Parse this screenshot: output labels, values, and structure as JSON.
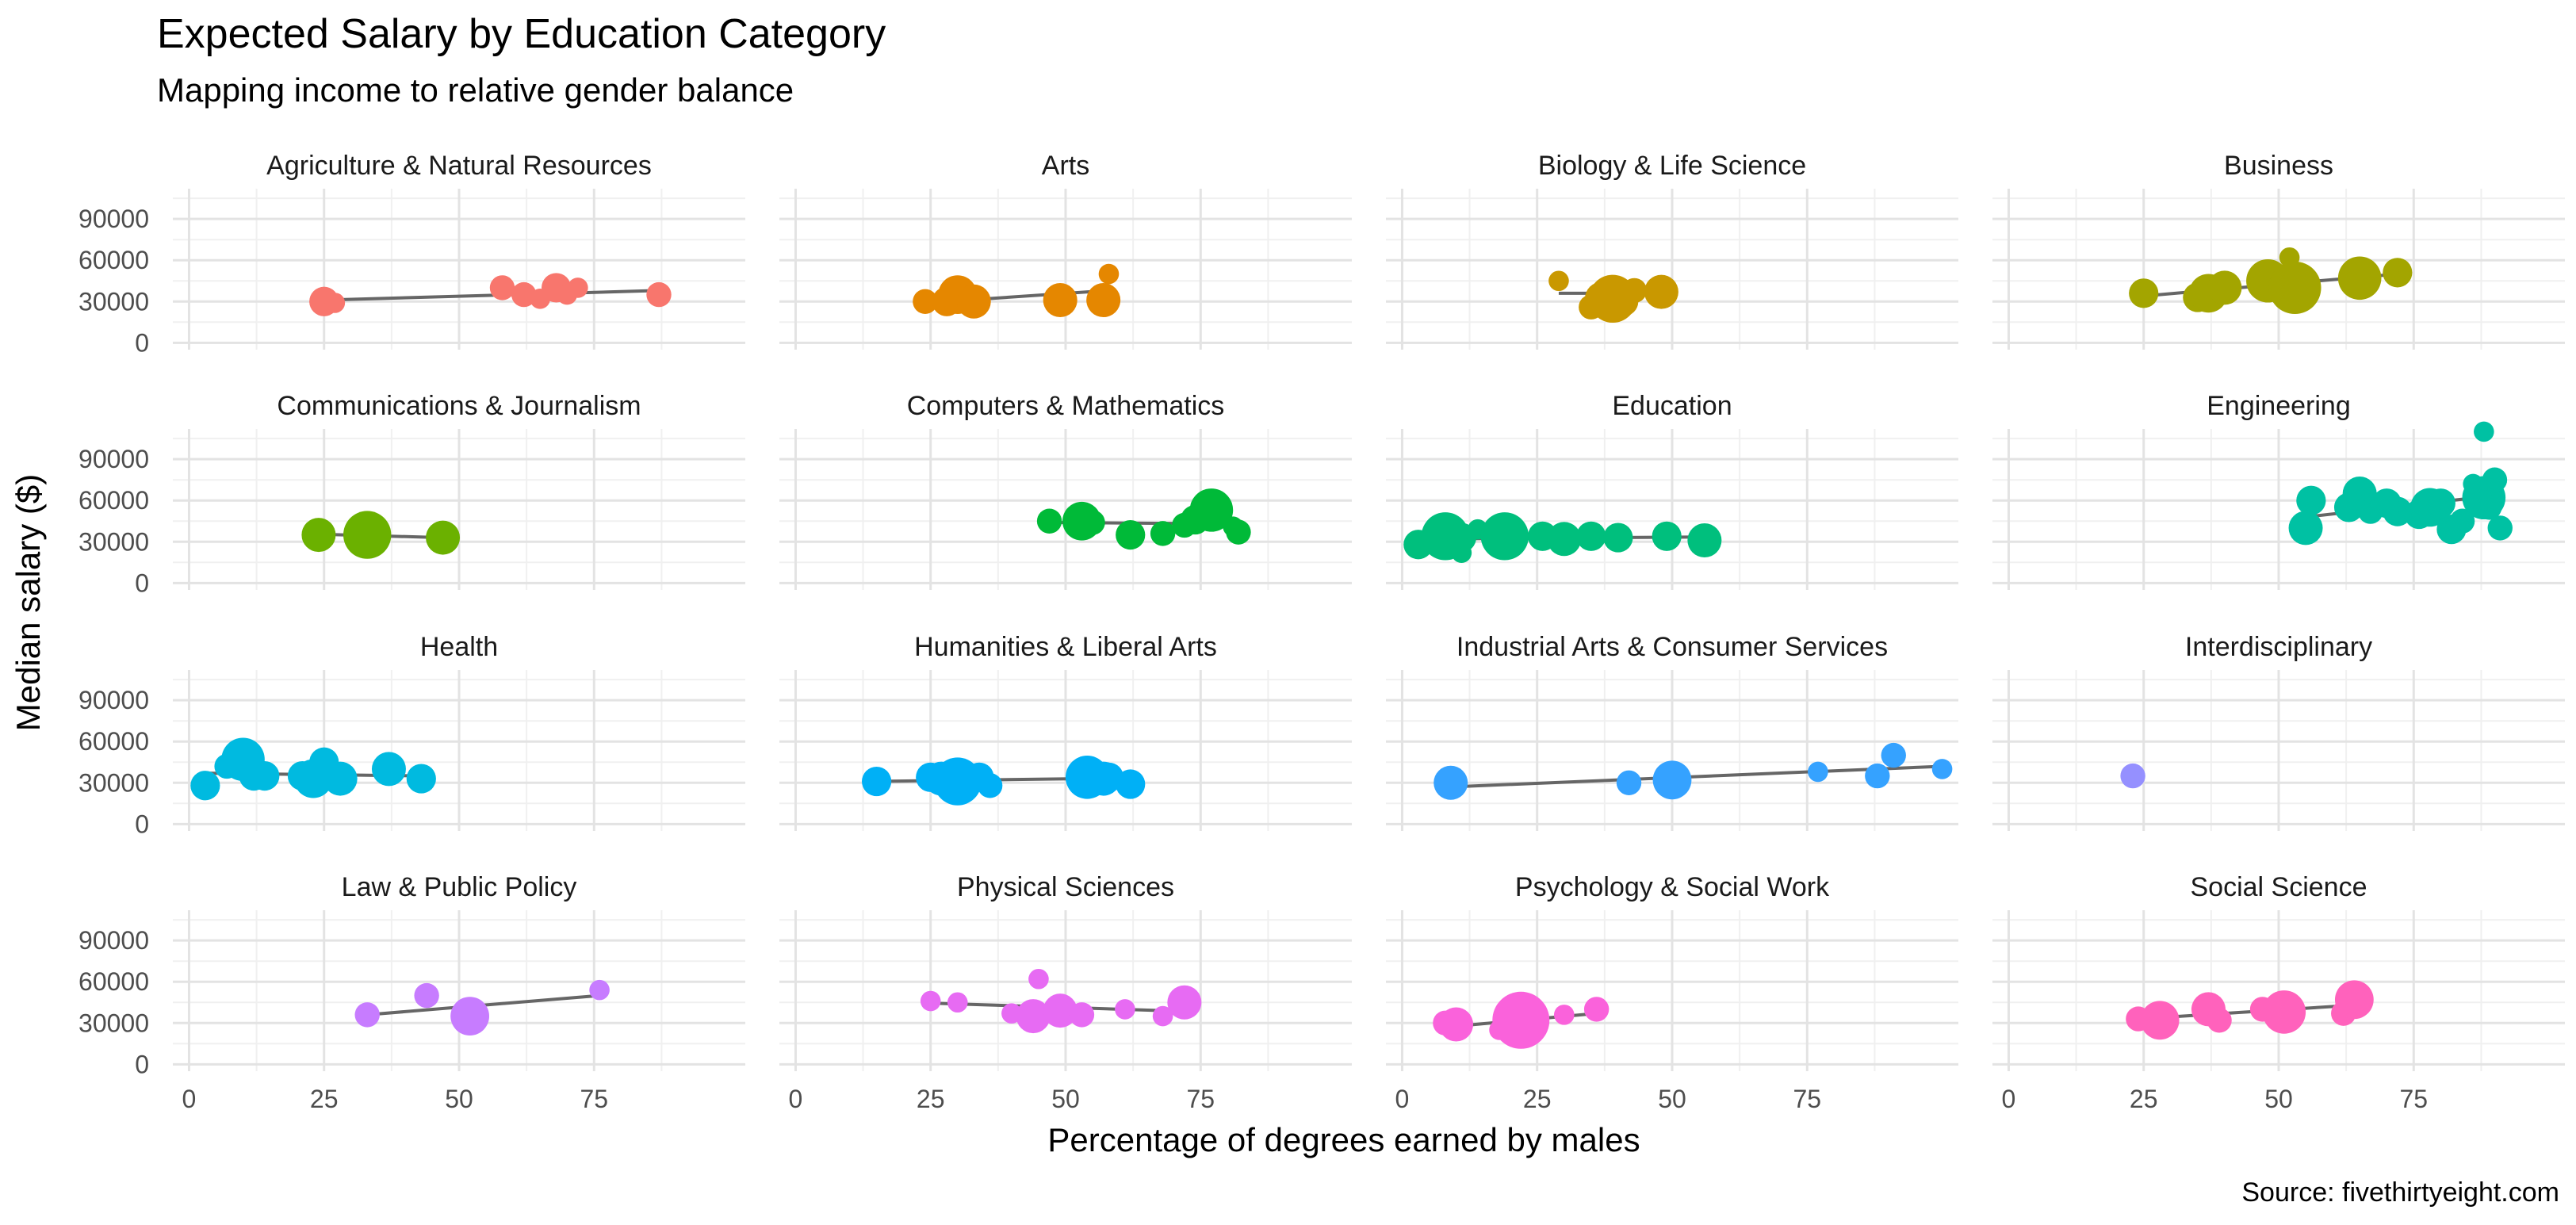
{
  "title": "Expected Salary by Education Category",
  "subtitle": "Mapping income to relative gender balance",
  "caption": "Source: fivethirtyeight.com",
  "chart_data": {
    "type": "scatter",
    "title": "Expected Salary by Education Category",
    "subtitle": "Mapping income to relative gender balance",
    "xlabel": "Percentage of degrees earned by males",
    "ylabel": "Median salary ($)",
    "xlim": [
      -3,
      103
    ],
    "ylim": [
      -5000,
      112000
    ],
    "x_ticks": [
      0,
      25,
      50,
      75
    ],
    "y_ticks": [
      0,
      30000,
      60000,
      90000
    ],
    "grid": true,
    "legend": "none",
    "trend": "linear fit per panel",
    "panels": [
      {
        "name": "Agriculture & Natural Resources",
        "color": "#F8766D",
        "points": [
          [
            25,
            30000,
            2
          ],
          [
            27,
            29000,
            1
          ],
          [
            58,
            40000,
            1.5
          ],
          [
            62,
            35000,
            1.5
          ],
          [
            65,
            32000,
            1
          ],
          [
            68,
            40000,
            2
          ],
          [
            70,
            35000,
            1
          ],
          [
            72,
            40000,
            1
          ],
          [
            87,
            35000,
            1.5
          ]
        ],
        "fit": [
          [
            25,
            31000
          ],
          [
            87,
            38000
          ]
        ]
      },
      {
        "name": "Arts",
        "color": "#E58700",
        "points": [
          [
            24,
            30000,
            1.5
          ],
          [
            28,
            30000,
            2
          ],
          [
            30,
            35000,
            3
          ],
          [
            33,
            30000,
            2.5
          ],
          [
            49,
            31000,
            2.5
          ],
          [
            57,
            31000,
            2.5
          ],
          [
            58,
            50000,
            1
          ]
        ],
        "fit": [
          [
            24,
            29000
          ],
          [
            58,
            38000
          ]
        ]
      },
      {
        "name": "Biology & Life Science",
        "color": "#C99800",
        "points": [
          [
            29,
            45000,
            1
          ],
          [
            35,
            26000,
            1.5
          ],
          [
            37,
            32000,
            2.5
          ],
          [
            39,
            32000,
            4
          ],
          [
            41,
            30000,
            2
          ],
          [
            43,
            38000,
            1.5
          ],
          [
            48,
            37000,
            2.5
          ]
        ],
        "fit": [
          [
            29,
            36000
          ],
          [
            48,
            36000
          ]
        ]
      },
      {
        "name": "Business",
        "color": "#A3A500",
        "points": [
          [
            25,
            36000,
            2
          ],
          [
            35,
            33000,
            2
          ],
          [
            37,
            36000,
            3
          ],
          [
            40,
            40000,
            2.5
          ],
          [
            48,
            45000,
            3.5
          ],
          [
            52,
            62000,
            1
          ],
          [
            53,
            40000,
            4.5
          ],
          [
            65,
            47000,
            3.5
          ],
          [
            72,
            51000,
            2
          ]
        ],
        "fit": [
          [
            25,
            34000
          ],
          [
            72,
            50000
          ]
        ]
      },
      {
        "name": "Communications & Journalism",
        "color": "#6BB100",
        "points": [
          [
            24,
            35000,
            2.5
          ],
          [
            33,
            35000,
            4
          ],
          [
            47,
            33000,
            2.5
          ]
        ],
        "fit": [
          [
            24,
            35500
          ],
          [
            47,
            33000
          ]
        ]
      },
      {
        "name": "Computers & Mathematics",
        "color": "#00BA38",
        "points": [
          [
            47,
            45000,
            1.5
          ],
          [
            53,
            45000,
            3
          ],
          [
            55,
            44000,
            1.5
          ],
          [
            62,
            35000,
            2
          ],
          [
            68,
            36000,
            1.5
          ],
          [
            72,
            42000,
            1.5
          ],
          [
            74,
            46000,
            2
          ],
          [
            77,
            53000,
            3.5
          ],
          [
            81,
            41000,
            1
          ],
          [
            82,
            37000,
            1.5
          ]
        ],
        "fit": [
          [
            47,
            44000
          ],
          [
            82,
            43000
          ]
        ]
      },
      {
        "name": "Education",
        "color": "#00BF7D",
        "points": [
          [
            3,
            28000,
            2
          ],
          [
            8,
            34000,
            4
          ],
          [
            11,
            22000,
            1
          ],
          [
            11,
            33000,
            2
          ],
          [
            14,
            39000,
            1
          ],
          [
            18,
            33000,
            2
          ],
          [
            19,
            34000,
            4
          ],
          [
            26,
            34000,
            2
          ],
          [
            30,
            32000,
            2.5
          ],
          [
            35,
            34000,
            2
          ],
          [
            40,
            33000,
            2
          ],
          [
            49,
            34000,
            2
          ],
          [
            56,
            31000,
            2.5
          ]
        ],
        "fit": [
          [
            3,
            32000
          ],
          [
            56,
            33500
          ]
        ]
      },
      {
        "name": "Engineering",
        "color": "#00C1A3",
        "points": [
          [
            55,
            40000,
            2.5
          ],
          [
            56,
            60000,
            2
          ],
          [
            63,
            55000,
            2
          ],
          [
            65,
            65000,
            2.5
          ],
          [
            67,
            52000,
            1.5
          ],
          [
            70,
            58000,
            2
          ],
          [
            72,
            52000,
            2
          ],
          [
            76,
            50000,
            2
          ],
          [
            78,
            55000,
            3
          ],
          [
            80,
            58000,
            2
          ],
          [
            82,
            39000,
            2
          ],
          [
            84,
            45000,
            1.5
          ],
          [
            86,
            72000,
            1
          ],
          [
            88,
            62000,
            3.5
          ],
          [
            88,
            110000,
            1
          ],
          [
            89,
            55000,
            1.5
          ],
          [
            90,
            75000,
            1.5
          ],
          [
            91,
            40000,
            1.5
          ]
        ],
        "fit": [
          [
            55,
            48000
          ],
          [
            91,
            64000
          ]
        ]
      },
      {
        "name": "Health",
        "color": "#00BAE0",
        "points": [
          [
            3,
            28000,
            2
          ],
          [
            7,
            42000,
            1.5
          ],
          [
            10,
            47000,
            3.5
          ],
          [
            12,
            35000,
            2
          ],
          [
            14,
            35000,
            2
          ],
          [
            21,
            35000,
            2
          ],
          [
            23,
            33000,
            3
          ],
          [
            25,
            45000,
            2
          ],
          [
            28,
            33000,
            2.5
          ],
          [
            37,
            40000,
            2.5
          ],
          [
            43,
            33000,
            2
          ]
        ],
        "fit": [
          [
            3,
            37000
          ],
          [
            43,
            35000
          ]
        ]
      },
      {
        "name": "Humanities & Liberal Arts",
        "color": "#00B0F6",
        "points": [
          [
            15,
            31000,
            2
          ],
          [
            25,
            34000,
            2
          ],
          [
            27,
            33000,
            2.5
          ],
          [
            30,
            31000,
            4
          ],
          [
            34,
            34000,
            2
          ],
          [
            36,
            28000,
            1.5
          ],
          [
            54,
            34000,
            3.5
          ],
          [
            57,
            33000,
            2.5
          ],
          [
            58,
            34000,
            2
          ],
          [
            62,
            29000,
            2
          ]
        ],
        "fit": [
          [
            15,
            31000
          ],
          [
            62,
            33500
          ]
        ]
      },
      {
        "name": "Industrial Arts & Consumer Services",
        "color": "#35A2FF",
        "points": [
          [
            9,
            30000,
            2.5
          ],
          [
            42,
            30000,
            1.5
          ],
          [
            50,
            32000,
            3
          ],
          [
            77,
            38000,
            1
          ],
          [
            88,
            35000,
            1.5
          ],
          [
            91,
            50000,
            1.5
          ],
          [
            100,
            40000,
            1
          ]
        ],
        "fit": [
          [
            9,
            27000
          ],
          [
            100,
            42000
          ]
        ]
      },
      {
        "name": "Interdisciplinary",
        "color": "#9590FF",
        "points": [
          [
            23,
            35000,
            1.5
          ]
        ],
        "fit": []
      },
      {
        "name": "Law & Public Policy",
        "color": "#C77CFF",
        "points": [
          [
            33,
            36000,
            1.5
          ],
          [
            44,
            50000,
            1.5
          ],
          [
            52,
            35000,
            3
          ],
          [
            76,
            54000,
            1
          ]
        ],
        "fit": [
          [
            33,
            36000
          ],
          [
            76,
            50000
          ]
        ]
      },
      {
        "name": "Physical Sciences",
        "color": "#E76BF3",
        "points": [
          [
            25,
            46000,
            1
          ],
          [
            30,
            45000,
            1
          ],
          [
            40,
            37000,
            1
          ],
          [
            44,
            35000,
            2.5
          ],
          [
            45,
            62000,
            1
          ],
          [
            49,
            39000,
            2.5
          ],
          [
            53,
            36000,
            1.5
          ],
          [
            61,
            40000,
            1
          ],
          [
            68,
            35000,
            1
          ],
          [
            72,
            45000,
            2.5
          ]
        ],
        "fit": [
          [
            25,
            44500
          ],
          [
            72,
            38500
          ]
        ]
      },
      {
        "name": "Psychology & Social Work",
        "color": "#FA62DB",
        "points": [
          [
            8,
            30000,
            1.5
          ],
          [
            10,
            29000,
            2.5
          ],
          [
            18,
            25000,
            1
          ],
          [
            22,
            32000,
            5
          ],
          [
            30,
            36000,
            1
          ],
          [
            36,
            40000,
            1.5
          ]
        ],
        "fit": [
          [
            8,
            27000
          ],
          [
            36,
            37000
          ]
        ]
      },
      {
        "name": "Social Science",
        "color": "#FF62BC",
        "points": [
          [
            24,
            33000,
            1.5
          ],
          [
            28,
            32000,
            3
          ],
          [
            37,
            40000,
            2.5
          ],
          [
            39,
            32000,
            1.5
          ],
          [
            47,
            40000,
            1.5
          ],
          [
            51,
            38000,
            3.5
          ],
          [
            62,
            37000,
            1.5
          ],
          [
            64,
            47000,
            3
          ]
        ],
        "fit": [
          [
            24,
            33000
          ],
          [
            64,
            43000
          ]
        ]
      }
    ]
  }
}
